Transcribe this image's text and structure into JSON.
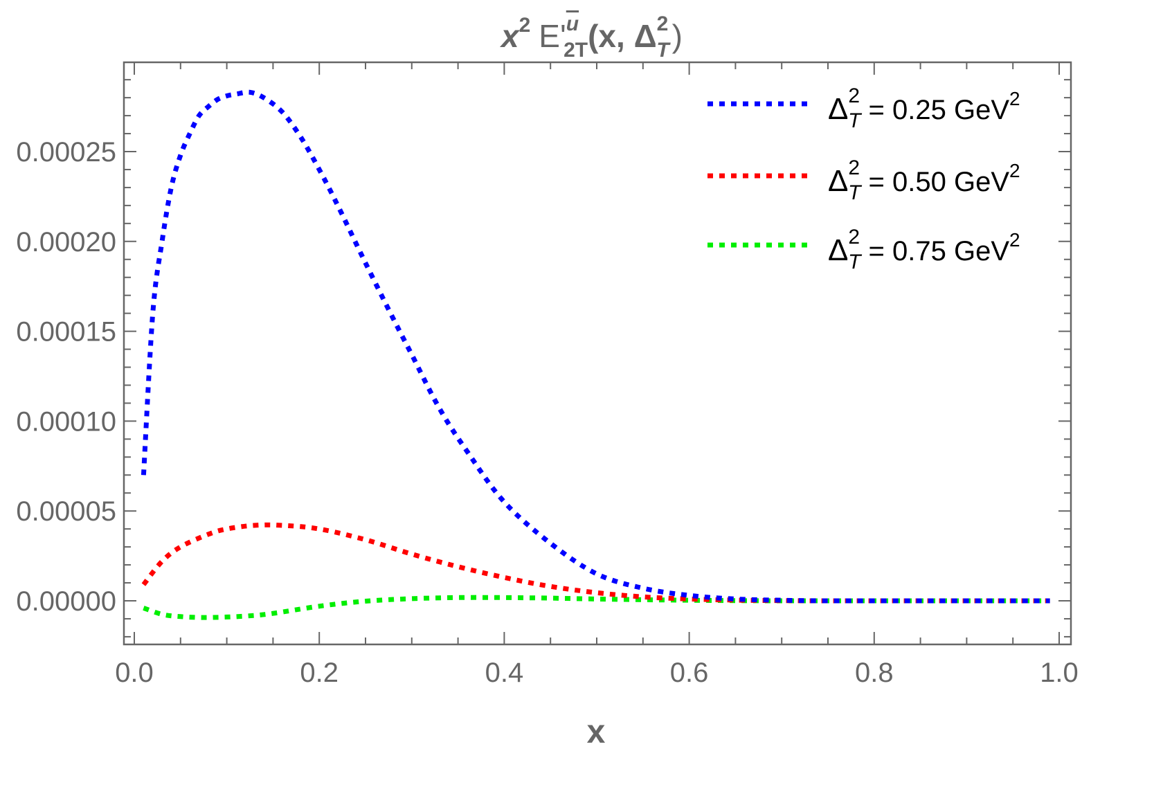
{
  "chart_data": {
    "type": "line",
    "title": {
      "x": "x",
      "sup2": "2",
      "E": "E'",
      "ubar": "u",
      "sub2T": "2T",
      "args_open": "(x, ",
      "delta": "Δ",
      "delta_sub": "T",
      "delta_sup": "2",
      "args_close": ")"
    },
    "xlabel": "x",
    "ylabel": "",
    "xlim": [
      0.0,
      1.0
    ],
    "ylim": [
      -2.4e-05,
      0.000297
    ],
    "x_ticks": [
      {
        "value": 0.0,
        "label": "0.0"
      },
      {
        "value": 0.2,
        "label": "0.2"
      },
      {
        "value": 0.4,
        "label": "0.4"
      },
      {
        "value": 0.6,
        "label": "0.6"
      },
      {
        "value": 0.8,
        "label": "0.8"
      },
      {
        "value": 1.0,
        "label": "1.0"
      }
    ],
    "y_ticks": [
      {
        "value": 0.0,
        "label": "0.00000"
      },
      {
        "value": 5e-05,
        "label": "0.00005"
      },
      {
        "value": 0.0001,
        "label": "0.00010"
      },
      {
        "value": 0.00015,
        "label": "0.00015"
      },
      {
        "value": 0.0002,
        "label": "0.00020"
      },
      {
        "value": 0.00025,
        "label": "0.00025"
      }
    ],
    "grid": false,
    "legend_position": "top-right",
    "series": [
      {
        "name": "0.25",
        "legend": {
          "delta": "Δ",
          "sup": "2",
          "sub": "T",
          "eq": " = 0.25 GeV",
          "unit_sup": "2"
        },
        "color": "#0000ff",
        "x": [
          0.01,
          0.02,
          0.03,
          0.04,
          0.05,
          0.06,
          0.07,
          0.08,
          0.09,
          0.1,
          0.11,
          0.125,
          0.14,
          0.16,
          0.18,
          0.2,
          0.22,
          0.25,
          0.28,
          0.3,
          0.33,
          0.36,
          0.4,
          0.45,
          0.5,
          0.55,
          0.6,
          0.65,
          0.7,
          0.75,
          0.8,
          0.85,
          0.9,
          0.95,
          0.99
        ],
        "y": [
          7e-05,
          0.00016,
          0.0002,
          0.00023,
          0.000248,
          0.00026,
          0.00027,
          0.000275,
          0.000279,
          0.000281,
          0.000282,
          0.000283,
          0.00028,
          0.000272,
          0.000258,
          0.00024,
          0.00022,
          0.000188,
          0.000157,
          0.000137,
          0.000107,
          8.3e-05,
          5.5e-05,
          3.2e-05,
          1.5e-05,
          7e-06,
          3e-06,
          1e-06,
          3e-07,
          0.0,
          0.0,
          0.0,
          0.0,
          0.0,
          0.0
        ]
      },
      {
        "name": "0.50",
        "legend": {
          "delta": "Δ",
          "sup": "2",
          "sub": "T",
          "eq": " = 0.50 GeV",
          "unit_sup": "2"
        },
        "color": "#ff0000",
        "x": [
          0.01,
          0.03,
          0.05,
          0.08,
          0.1,
          0.13,
          0.16,
          0.2,
          0.25,
          0.3,
          0.35,
          0.4,
          0.45,
          0.5,
          0.55,
          0.6,
          0.65,
          0.7,
          0.75,
          0.8,
          0.85,
          0.9,
          0.95,
          0.99
        ],
        "y": [
          9e-06,
          2.2e-05,
          3e-05,
          3.7e-05,
          4e-05,
          4.2e-05,
          4.2e-05,
          4e-05,
          3.4e-05,
          2.6e-05,
          1.9e-05,
          1.3e-05,
          8e-06,
          4.5e-06,
          2.2e-06,
          1e-06,
          4e-07,
          1e-07,
          0.0,
          0.0,
          0.0,
          0.0,
          0.0,
          0.0
        ]
      },
      {
        "name": "0.75",
        "legend": {
          "delta": "Δ",
          "sup": "2",
          "sub": "T",
          "eq": " = 0.75 GeV",
          "unit_sup": "2"
        },
        "color": "#00ee00",
        "x": [
          0.01,
          0.03,
          0.05,
          0.08,
          0.12,
          0.15,
          0.2,
          0.25,
          0.3,
          0.35,
          0.4,
          0.45,
          0.5,
          0.55,
          0.6,
          0.65,
          0.7,
          0.75,
          0.8,
          0.85,
          0.9,
          0.95,
          0.99
        ],
        "y": [
          -4e-06,
          -7.5e-06,
          -8.8e-06,
          -9.3e-06,
          -8.5e-06,
          -7e-06,
          -3e-06,
          -2e-07,
          1.2e-06,
          1.8e-06,
          1.8e-06,
          1.5e-06,
          1e-06,
          6e-07,
          3e-07,
          1e-07,
          0.0,
          0.0,
          0.0,
          0.0,
          0.0,
          0.0,
          0.0
        ]
      }
    ]
  }
}
